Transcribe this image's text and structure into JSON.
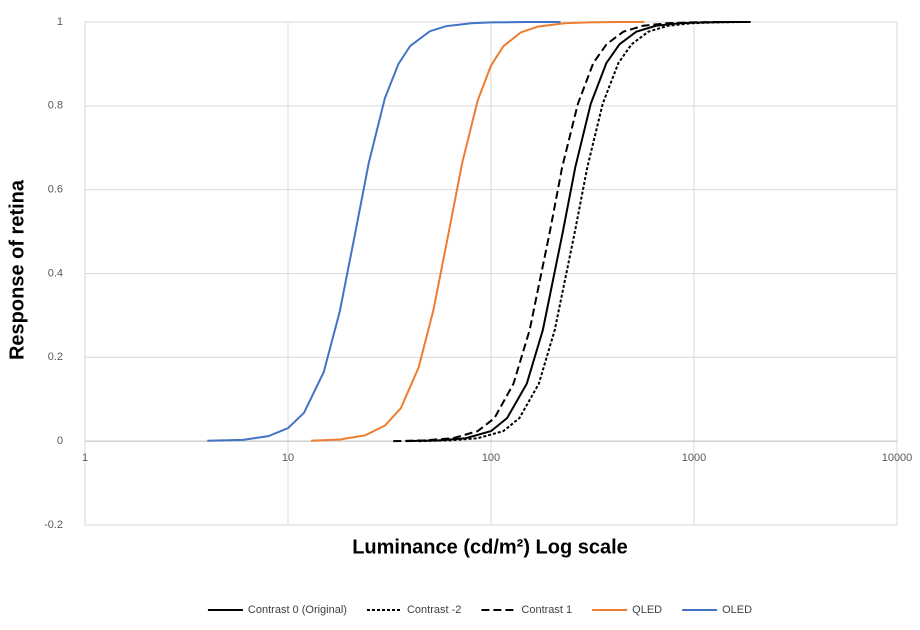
{
  "chart_data": {
    "type": "line",
    "xlabel": "Luminance (cd/m²) Log scale",
    "ylabel": "Response of retina",
    "xscale": "log",
    "xlim": [
      1,
      10000
    ],
    "xticks": [
      1,
      10,
      100,
      1000,
      10000
    ],
    "ylim": [
      -0.2,
      1
    ],
    "yticks": [
      -0.2,
      0,
      0.2,
      0.4,
      0.6,
      0.8,
      1
    ],
    "grid": true,
    "legend": "bottom",
    "series": [
      {
        "name": "Contrast 0 (Original)",
        "color": "#000000",
        "dash": "none",
        "x": [
          38,
          55,
          75,
          100,
          120,
          150,
          180,
          226,
          260,
          310,
          370,
          430,
          520,
          650,
          850,
          1100,
          1500,
          1900
        ],
        "values": [
          0.0,
          0.002,
          0.007,
          0.024,
          0.055,
          0.137,
          0.265,
          0.5,
          0.653,
          0.805,
          0.902,
          0.947,
          0.977,
          0.991,
          0.997,
          0.999,
          1.0,
          1.0
        ]
      },
      {
        "name": "Contrast -2",
        "color": "#000000",
        "dash": "3,2",
        "x": [
          44,
          63,
          86,
          115,
          138,
          172,
          206,
          259,
          298,
          355,
          424,
          493,
          596,
          745,
          974,
          1260,
          1719,
          1900
        ],
        "values": [
          0.0,
          0.002,
          0.007,
          0.024,
          0.055,
          0.137,
          0.265,
          0.5,
          0.653,
          0.805,
          0.902,
          0.947,
          0.977,
          0.991,
          0.997,
          0.999,
          1.0,
          1.0
        ]
      },
      {
        "name": "Contrast 1",
        "color": "#000000",
        "dash": "8,4",
        "x": [
          33,
          47,
          65,
          86,
          104,
          129,
          155,
          195,
          224,
          268,
          319,
          371,
          449,
          561,
          734,
          949,
          1294,
          1900
        ],
        "values": [
          0.0,
          0.002,
          0.007,
          0.024,
          0.055,
          0.137,
          0.265,
          0.5,
          0.653,
          0.805,
          0.902,
          0.947,
          0.977,
          0.991,
          0.997,
          0.999,
          1.0,
          1.0
        ]
      },
      {
        "name": "QLED",
        "color": "#ED7D31",
        "dash": "none",
        "x": [
          13,
          18,
          24,
          30,
          36,
          44,
          52,
          62,
          72,
          86,
          100,
          115,
          140,
          170,
          230,
          300,
          420,
          570
        ],
        "values": [
          0.001,
          0.004,
          0.014,
          0.037,
          0.079,
          0.176,
          0.312,
          0.5,
          0.662,
          0.813,
          0.896,
          0.942,
          0.975,
          0.989,
          0.997,
          0.999,
          1.0,
          1.0
        ]
      },
      {
        "name": "OLED",
        "color": "#4472C4",
        "dash": "none",
        "x": [
          4,
          6,
          8,
          10,
          12,
          15,
          18,
          21.5,
          25,
          30,
          35,
          40,
          50,
          60,
          80,
          100,
          150,
          220
        ],
        "values": [
          0.001,
          0.003,
          0.012,
          0.031,
          0.068,
          0.165,
          0.31,
          0.5,
          0.664,
          0.818,
          0.9,
          0.943,
          0.978,
          0.99,
          0.997,
          0.999,
          1.0,
          1.0
        ]
      }
    ]
  }
}
